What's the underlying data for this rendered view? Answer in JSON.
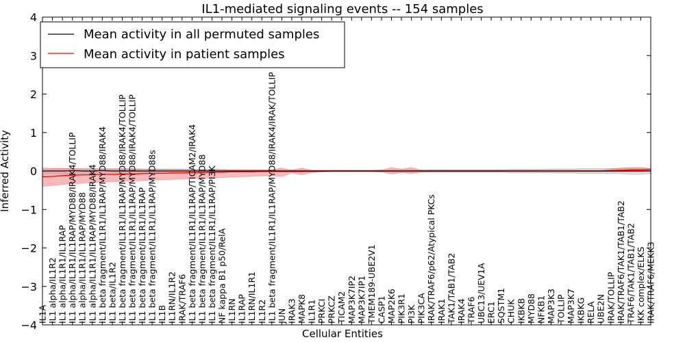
{
  "chart_data": {
    "type": "line",
    "title": "IL1-mediated signaling events -- 154 samples",
    "xlabel": "Cellular Entities",
    "ylabel": "Inferred Activity",
    "ylim": [
      -4,
      4
    ],
    "yticks": [
      -4,
      -3,
      -2,
      -1,
      0,
      1,
      2,
      3,
      4
    ],
    "ytick_labels": [
      "−4",
      "−3",
      "−2",
      "−1",
      "0",
      "1",
      "2",
      "3",
      "4"
    ],
    "legend_location": "top-left",
    "categories": [
      "IL1A",
      "IL1 alpha/IL1R2",
      "IL1 alpha/IL1R1/IL1RAP",
      "IL1 alpha/IL1R1/IL1RAP/MYD88/IRAK4/TOLLIP",
      "IL1 alpha/IL1R1/IL1RAP/MYD88",
      "IL1 alpha/IL1R1/IL1RAP/MYD88/IRAK4",
      "IL1 beta fragment/IL1R1/IL1RAP/MYD88/IRAK4",
      "IL1 beta/IL1R2",
      "IL1 beta fragment/IL1R1/IL1RAP/MYD88/IRAK4/TOLLIP",
      "IL1 beta fragment/IL1R1/IL1RAP/MYD88/IRAK4/TOLLIP",
      "IL1 beta fragment/IL1R1/IL1RAP",
      "IL1 beta fragment/IL1R1/IL1RAP/MYD88s",
      "IL1B",
      "IL1RN/IL1R2",
      "IRAK/TRAF6",
      "IL1 beta fragment/IL1R1/IL1RAP/TICAM2/IRAK4",
      "IL1 beta fragment/IL1R1/IL1RAP/MYD88",
      "IL1 beta fragment/IL1R1/IL1RAP/PI3K",
      "NF kappa B1 p50/RelA",
      "IL1RN",
      "IL1RAP",
      "IL1RN/IL1R1",
      "IL1R2",
      "IL1 beta fragment/IL1R1/IL1RAP/MYD88/IRAK4/IRAK/TOLLIP",
      "JUN",
      "IRAK3",
      "MAPK8",
      "IL1R1",
      "PRKCI",
      "PRKCZ",
      "TICAM2",
      "MAP3K7IP2",
      "MAP3K7IP1",
      "TMEM189-UBE2V1",
      "CASP1",
      "MAP2K6",
      "PIK3R1",
      "PI3K",
      "PIK3CA",
      "IRAK/TRAF6/p62/Atypical PKCs",
      "IRAK1",
      "TAK1/TAB1/TAB2",
      "IRAK4",
      "TRAF6",
      "UBC13/UEV1A",
      "ERC1",
      "SQSTM1",
      "CHUK",
      "IKBKB",
      "MYD88",
      "NFKB1",
      "MAP3K3",
      "TOLLIP",
      "MAP3K7",
      "IKBKG",
      "RELA",
      "UBE2N",
      "IRAK/TOLLIP",
      "IRAK/TRAF6/TAK1/TAB1/TAB2",
      "TRAF6/TAK1/TAB1/TAB2",
      "IKK complex/ELKS",
      "IRAK/TRAF6/MEKK3"
    ],
    "series": [
      {
        "name": "Mean activity in all permuted samples",
        "color": "#000000",
        "values": [
          0,
          0,
          0,
          0.01,
          0,
          0,
          0.01,
          0,
          0,
          0,
          0,
          0,
          0,
          0,
          0,
          0,
          0,
          0,
          0,
          0,
          0,
          0,
          0,
          0,
          0,
          0,
          0,
          0,
          0,
          0,
          0,
          0,
          0,
          0,
          0,
          0,
          0,
          0,
          0,
          0,
          0,
          0,
          0,
          0,
          0,
          0,
          0,
          0,
          0,
          0,
          0,
          0,
          0,
          0,
          0,
          0,
          0,
          0,
          0,
          0,
          0,
          0
        ],
        "band_lower": [
          -0.08,
          -0.07,
          -0.07,
          -0.07,
          -0.07,
          -0.07,
          -0.06,
          -0.06,
          -0.06,
          -0.06,
          -0.05,
          -0.05,
          -0.05,
          -0.05,
          -0.05,
          -0.04,
          -0.04,
          -0.04,
          -0.04,
          -0.03,
          -0.03,
          -0.03,
          -0.03,
          -0.03,
          -0.03,
          -0.03,
          -0.03,
          -0.02,
          -0.02,
          -0.02,
          -0.02,
          -0.02,
          -0.02,
          -0.02,
          -0.03,
          -0.03,
          -0.03,
          -0.03,
          -0.03,
          -0.03,
          -0.03,
          -0.03,
          -0.03,
          -0.03,
          -0.03,
          -0.03,
          -0.03,
          -0.04,
          -0.04,
          -0.04,
          -0.04,
          -0.05,
          -0.05,
          -0.05,
          -0.06,
          -0.06,
          -0.06,
          -0.06,
          -0.07,
          -0.08,
          -0.08,
          -0.06
        ],
        "band_upper": [
          0.08,
          0.07,
          0.07,
          0.07,
          0.07,
          0.07,
          0.06,
          0.06,
          0.06,
          0.06,
          0.05,
          0.05,
          0.05,
          0.05,
          0.05,
          0.04,
          0.04,
          0.04,
          0.04,
          0.03,
          0.03,
          0.03,
          0.03,
          0.03,
          0.03,
          0.03,
          0.03,
          0.02,
          0.02,
          0.02,
          0.02,
          0.02,
          0.02,
          0.02,
          0.03,
          0.03,
          0.03,
          0.03,
          0.03,
          0.03,
          0.03,
          0.03,
          0.03,
          0.03,
          0.03,
          0.03,
          0.03,
          0.04,
          0.04,
          0.04,
          0.04,
          0.05,
          0.05,
          0.05,
          0.06,
          0.06,
          0.06,
          0.06,
          0.07,
          0.08,
          0.08,
          0.06
        ]
      },
      {
        "name": "Mean activity in patient samples",
        "color": "#ff0000",
        "values": [
          -0.15,
          -0.14,
          -0.12,
          -0.11,
          -0.1,
          -0.1,
          -0.09,
          -0.09,
          -0.08,
          -0.08,
          -0.07,
          -0.06,
          -0.06,
          -0.05,
          -0.05,
          -0.04,
          -0.04,
          -0.03,
          -0.03,
          -0.02,
          -0.02,
          -0.02,
          -0.01,
          -0.01,
          -0.01,
          -0.01,
          -0.01,
          -0.01,
          -0.01,
          0,
          0,
          0,
          0,
          0,
          0,
          0,
          0,
          0,
          0,
          0,
          0,
          0,
          0,
          0,
          0,
          0,
          0,
          0,
          0,
          0,
          0,
          0,
          0,
          0,
          0,
          0,
          0,
          0.01,
          0.02,
          0.03,
          0.03,
          0.04
        ],
        "band_lower": [
          -0.4,
          -0.38,
          -0.35,
          -0.33,
          -0.32,
          -0.3,
          -0.29,
          -0.28,
          -0.27,
          -0.26,
          -0.25,
          -0.24,
          -0.23,
          -0.22,
          -0.21,
          -0.2,
          -0.19,
          -0.18,
          -0.17,
          -0.16,
          -0.15,
          -0.14,
          -0.13,
          -0.12,
          -0.15,
          -0.05,
          -0.1,
          -0.04,
          -0.02,
          -0.02,
          -0.02,
          -0.02,
          -0.02,
          -0.02,
          -0.02,
          -0.08,
          -0.04,
          -0.07,
          -0.03,
          -0.02,
          -0.02,
          -0.02,
          -0.02,
          -0.02,
          -0.02,
          -0.02,
          -0.02,
          -0.02,
          -0.02,
          -0.02,
          -0.02,
          -0.02,
          -0.02,
          -0.02,
          -0.02,
          -0.02,
          -0.02,
          -0.02,
          -0.02,
          -0.02,
          -0.02,
          0
        ],
        "band_upper": [
          0.05,
          0.06,
          0.06,
          0.06,
          0.05,
          0.05,
          0.05,
          0.05,
          0.05,
          0.05,
          0.05,
          0.04,
          0.04,
          0.04,
          0.04,
          0.04,
          0.04,
          0.04,
          0.03,
          0.03,
          0.03,
          0.03,
          0.03,
          0.03,
          0.08,
          0.02,
          0.08,
          0.02,
          0.02,
          0.02,
          0.02,
          0.02,
          0.02,
          0.02,
          0.02,
          0.09,
          0.05,
          0.09,
          0.02,
          0.02,
          0.02,
          0.02,
          0.02,
          0.02,
          0.02,
          0.02,
          0.02,
          0.02,
          0.02,
          0.02,
          0.02,
          0.02,
          0.02,
          0.02,
          0.02,
          0.02,
          0.02,
          0.06,
          0.08,
          0.09,
          0.09,
          0.07
        ]
      }
    ]
  }
}
